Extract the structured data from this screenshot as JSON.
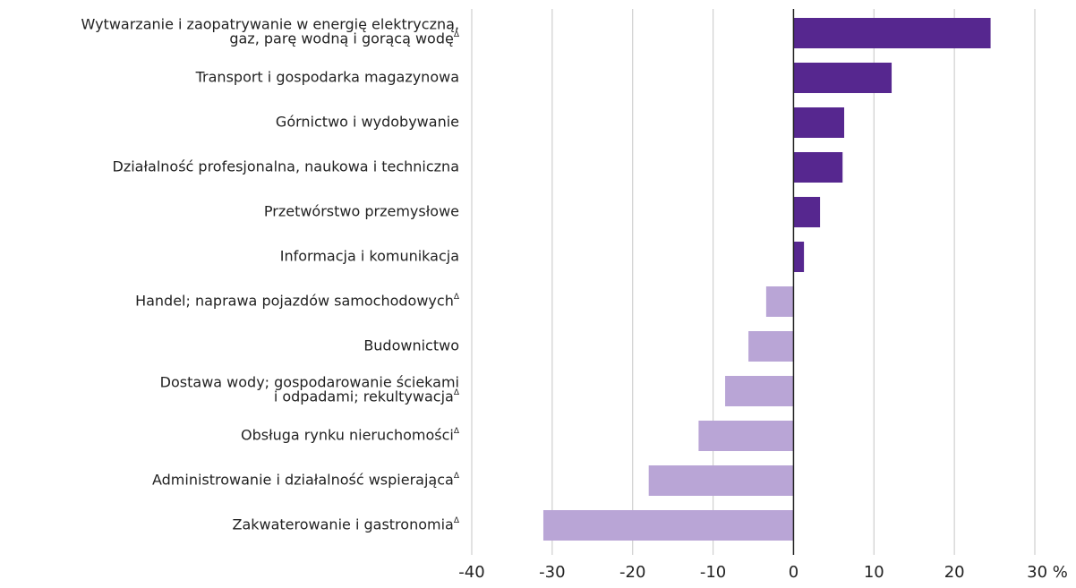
{
  "chart_data": {
    "type": "bar",
    "orientation": "horizontal",
    "categories": [
      [
        "Wytwarzanie i zaopatrywanie w energię elektryczną,",
        "gaz, parę wodną i gorącą wodęΔ"
      ],
      [
        "Transport i gospodarka magazynowa"
      ],
      [
        "Górnictwo i wydobywanie"
      ],
      [
        "Działalność profesjonalna, naukowa i techniczna"
      ],
      [
        "Przetwórstwo przemysłowe"
      ],
      [
        "Informacja i komunikacja"
      ],
      [
        "Handel; naprawa pojazdów samochodowychΔ"
      ],
      [
        "Budownictwo"
      ],
      [
        "Dostawa wody; gospodarowanie ściekami",
        "i odpadami; rekultywacjaΔ"
      ],
      [
        "Obsługa rynku nieruchomościΔ"
      ],
      [
        "Administrowanie i działalność wspierającaΔ"
      ],
      [
        "Zakwaterowanie i gastronomiaΔ"
      ]
    ],
    "values": [
      24.5,
      12.2,
      6.3,
      6.1,
      3.3,
      1.3,
      -3.4,
      -5.6,
      -8.5,
      -11.8,
      -18.0,
      -31.1
    ],
    "positive_color": "#56278f",
    "negative_color": "#b9a5d6",
    "xlim": [
      -40,
      30
    ],
    "xticks": [
      -40,
      -30,
      -20,
      -10,
      0,
      10,
      20,
      {
        "value": 30,
        "label": "30 %"
      }
    ],
    "grid": true
  }
}
